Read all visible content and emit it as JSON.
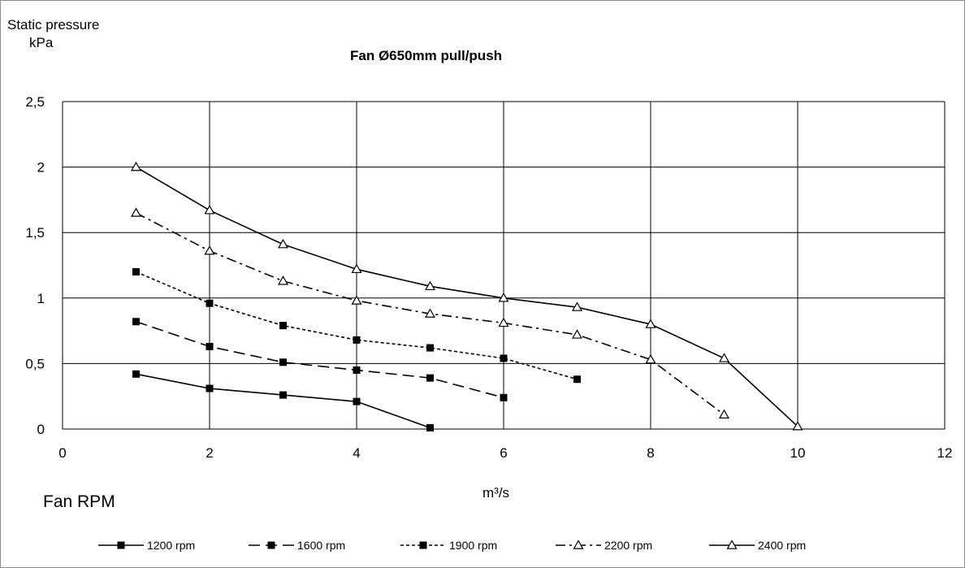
{
  "chart_data": {
    "type": "line",
    "title": "Fan Ø650mm pull/push",
    "ylabel": [
      "Static pressure",
      "kPa"
    ],
    "xlabel": "m³/s",
    "legend_title": "Fan RPM",
    "legend_placement": "bottom",
    "grid": true,
    "xlim": [
      0,
      12
    ],
    "ylim": [
      0,
      2.5
    ],
    "x_ticks": [
      "0",
      "2",
      "4",
      "6",
      "8",
      "10",
      "12"
    ],
    "y_ticks": [
      "0",
      "0,5",
      "1",
      "1,5",
      "2",
      "2,5"
    ],
    "series": [
      {
        "name": "1200 rpm",
        "style": "solid",
        "marker": "square",
        "x": [
          1,
          2,
          3,
          4,
          5
        ],
        "y": [
          0.42,
          0.31,
          0.26,
          0.21,
          0.01
        ]
      },
      {
        "name": "1600 rpm",
        "style": "dashed",
        "marker": "square",
        "x": [
          1,
          2,
          3,
          4,
          5,
          6
        ],
        "y": [
          0.82,
          0.63,
          0.51,
          0.45,
          0.39,
          0.24
        ]
      },
      {
        "name": "1900 rpm",
        "style": "dotted",
        "marker": "square",
        "x": [
          1,
          2,
          3,
          4,
          5,
          6,
          7
        ],
        "y": [
          1.2,
          0.96,
          0.79,
          0.68,
          0.62,
          0.54,
          0.38
        ]
      },
      {
        "name": "2200 rpm",
        "style": "dashdot",
        "marker": "triangle",
        "x": [
          1,
          2,
          3,
          4,
          5,
          6,
          7,
          8,
          9
        ],
        "y": [
          1.65,
          1.36,
          1.13,
          0.98,
          0.88,
          0.81,
          0.72,
          0.53,
          0.11
        ]
      },
      {
        "name": "2400 rpm",
        "style": "solid",
        "marker": "triangle",
        "x": [
          1,
          2,
          3,
          4,
          5,
          6,
          7,
          8,
          9,
          10
        ],
        "y": [
          2.0,
          1.67,
          1.41,
          1.22,
          1.09,
          1.0,
          0.93,
          0.8,
          0.54,
          0.02
        ]
      }
    ],
    "colors": {
      "line": "#000000",
      "grid": "#000000",
      "frame": "#8c8c8c"
    }
  }
}
